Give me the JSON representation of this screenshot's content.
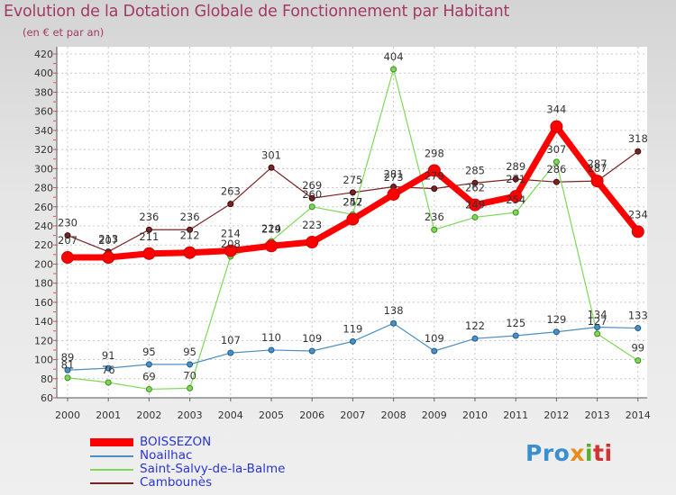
{
  "header": {
    "title": "Evolution de la Dotation Globale de Fonctionnement par Habitant",
    "subtitle": "(en € et par an)"
  },
  "logo": {
    "parts": [
      "Pro",
      "x",
      "i",
      "ti"
    ]
  },
  "chart_data": {
    "type": "line",
    "title": "Evolution de la Dotation Globale de Fonctionnement par Habitant",
    "subtitle": "(en € et par an)",
    "xlabel": "",
    "ylabel": "",
    "ylim": [
      60,
      420
    ],
    "ytick_step": 20,
    "grid": true,
    "categories": [
      "2000",
      "2001",
      "2002",
      "2003",
      "2004",
      "2005",
      "2006",
      "2007",
      "2008",
      "2009",
      "2010",
      "2011",
      "2012",
      "2013",
      "2014"
    ],
    "series": [
      {
        "name": "Cambounès",
        "color": "#7a2323",
        "values": [
          230,
          213,
          236,
          236,
          263,
          301,
          269,
          275,
          281,
          279,
          285,
          289,
          286,
          287,
          318
        ],
        "labels": [
          "230",
          "213",
          "236",
          "236",
          "263",
          "301",
          "269",
          "275",
          "281",
          "279",
          "285",
          "289",
          "286",
          "287",
          "318"
        ]
      },
      {
        "name": "Saint-Salvy-de-la-Balme",
        "color": "#7ed957",
        "values": [
          81,
          76,
          69,
          70,
          208,
          224,
          260,
          252,
          404,
          236,
          249,
          254,
          307,
          127,
          99
        ],
        "labels": [
          "81",
          "76",
          "69",
          "70",
          "208",
          "224",
          "260",
          "252",
          "404",
          "236",
          "249",
          "254",
          "307",
          "127",
          "99"
        ]
      },
      {
        "name": "Noailhac",
        "color": "#4b8fc4",
        "values": [
          89,
          91,
          95,
          95,
          107,
          110,
          109,
          119,
          138,
          109,
          122,
          125,
          129,
          134,
          133
        ],
        "labels": [
          "89",
          "91",
          "95",
          "95",
          "107",
          "110",
          "109",
          "119",
          "138",
          "109",
          "122",
          "125",
          "129",
          "134",
          "133"
        ]
      },
      {
        "name": "BOISSEZON",
        "color": "#ff0000",
        "values": [
          207,
          207,
          211,
          212,
          214,
          219,
          223,
          247,
          273,
          298,
          262,
          271,
          344,
          287,
          234
        ],
        "labels": [
          "207",
          "207",
          "211",
          "212",
          "214",
          "219",
          "223",
          "247",
          "273",
          "298",
          "262",
          "271",
          "344",
          "287",
          "234"
        ]
      }
    ],
    "legend": {
      "placement": "bottom-left",
      "entries": [
        "BOISSEZON",
        "Noailhac",
        "Saint-Salvy-de-la-Balme",
        "Cambounès"
      ]
    }
  }
}
